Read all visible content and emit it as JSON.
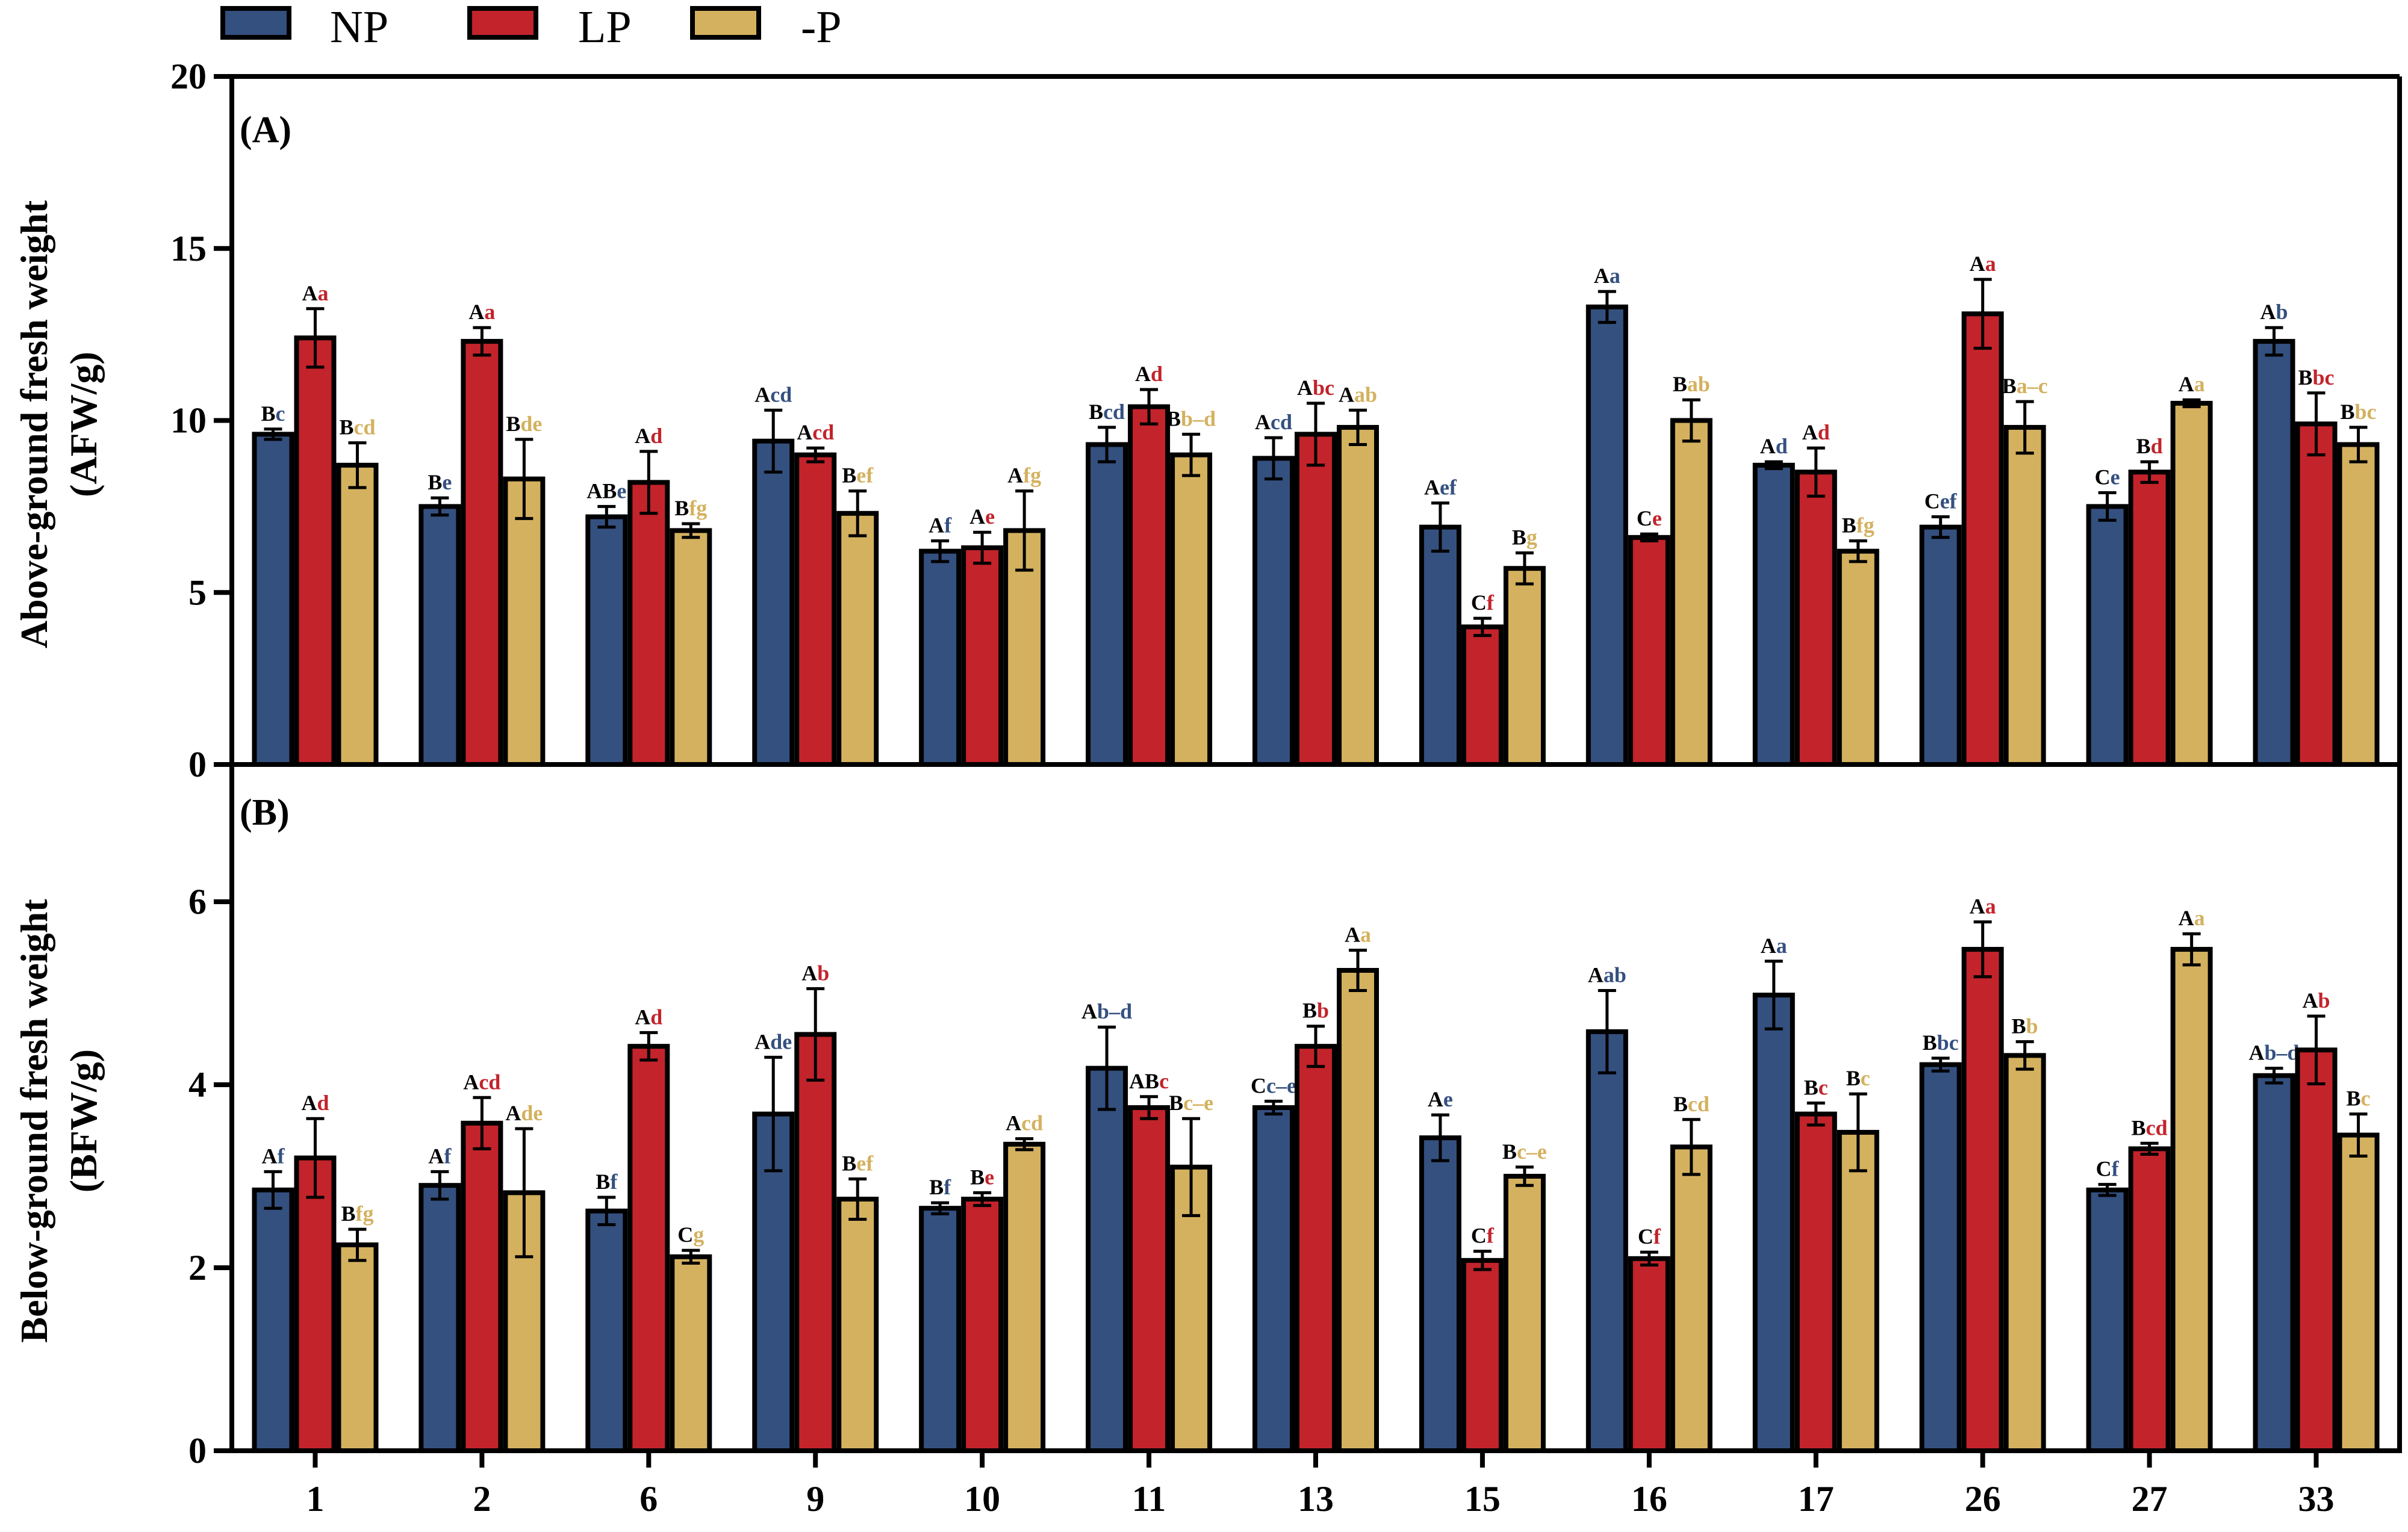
{
  "chart_data": [
    {
      "type": "bar",
      "panel_label": "(A)",
      "ylabel": [
        "Above-ground fresh weight",
        "(AFW/g)"
      ],
      "ylim": [
        0,
        20
      ],
      "yticks": [
        0,
        5,
        10,
        15,
        20
      ],
      "categories": [
        "1",
        "2",
        "6",
        "9",
        "10",
        "11",
        "13",
        "15",
        "16",
        "17",
        "26",
        "27",
        "33"
      ],
      "series": [
        {
          "name": "NP",
          "values": [
            9.6,
            7.5,
            7.2,
            9.4,
            6.2,
            9.3,
            8.9,
            6.9,
            13.3,
            8.7,
            6.9,
            7.5,
            12.3
          ],
          "errors": [
            0.15,
            0.25,
            0.3,
            0.9,
            0.3,
            0.5,
            0.6,
            0.7,
            0.45,
            0.1,
            0.3,
            0.4,
            0.4
          ],
          "cap_letters": [
            "B",
            "B",
            "AB",
            "A",
            "A",
            "B",
            "A",
            "A",
            "A",
            "A",
            "C",
            "C",
            "A"
          ],
          "low_letters": [
            "c",
            "e",
            "e",
            "cd",
            "f",
            "cd",
            "cd",
            "ef",
            "a",
            "d",
            "ef",
            "e",
            "b"
          ]
        },
        {
          "name": "LP",
          "values": [
            12.4,
            12.3,
            8.2,
            9.0,
            6.3,
            10.4,
            9.6,
            4.0,
            6.6,
            8.5,
            13.1,
            8.5,
            9.9
          ],
          "errors": [
            0.85,
            0.4,
            0.9,
            0.2,
            0.45,
            0.5,
            0.9,
            0.25,
            0.1,
            0.7,
            1.0,
            0.3,
            0.9
          ],
          "cap_letters": [
            "A",
            "A",
            "A",
            "A",
            "A",
            "A",
            "A",
            "C",
            "C",
            "A",
            "A",
            "B",
            "B"
          ],
          "low_letters": [
            "a",
            "a",
            "d",
            "cd",
            "e",
            "d",
            "bc",
            "f",
            "e",
            "d",
            "a",
            "d",
            "bc"
          ]
        },
        {
          "name": "-P",
          "values": [
            8.7,
            8.3,
            6.8,
            7.3,
            6.8,
            9.0,
            9.8,
            5.7,
            10.0,
            6.2,
            9.8,
            10.5,
            9.3
          ],
          "errors": [
            0.65,
            1.15,
            0.2,
            0.65,
            1.15,
            0.6,
            0.5,
            0.45,
            0.6,
            0.3,
            0.75,
            0.1,
            0.5
          ],
          "cap_letters": [
            "B",
            "B",
            "B",
            "B",
            "A",
            "B",
            "A",
            "B",
            "B",
            "B",
            "B",
            "A",
            "B"
          ],
          "low_letters": [
            "cd",
            "de",
            "fg",
            "ef",
            "fg",
            "b–d",
            "ab",
            "g",
            "ab",
            "fg",
            "a–c",
            "a",
            "bc"
          ]
        }
      ]
    },
    {
      "type": "bar",
      "panel_label": "(B)",
      "ylabel": [
        "Below-ground fresh weight",
        "(BFW/g)"
      ],
      "ylim": [
        0,
        7.5
      ],
      "yticks": [
        0,
        2,
        4,
        6
      ],
      "categories": [
        "1",
        "2",
        "6",
        "9",
        "10",
        "11",
        "13",
        "15",
        "16",
        "17",
        "26",
        "27",
        "33"
      ],
      "series": [
        {
          "name": "NP",
          "values": [
            2.85,
            2.9,
            2.62,
            3.68,
            2.65,
            4.18,
            3.75,
            3.42,
            4.58,
            4.98,
            4.22,
            2.85,
            4.1
          ],
          "errors": [
            0.2,
            0.15,
            0.15,
            0.62,
            0.06,
            0.45,
            0.07,
            0.25,
            0.45,
            0.37,
            0.07,
            0.06,
            0.08
          ],
          "cap_letters": [
            "A",
            "A",
            "B",
            "A",
            "B",
            "A",
            "C",
            "A",
            "A",
            "A",
            "B",
            "C",
            "A"
          ],
          "low_letters": [
            "f",
            "f",
            "f",
            "de",
            "f",
            "b–d",
            "c–e",
            "e",
            "ab",
            "a",
            "bc",
            "f",
            "b–d"
          ]
        },
        {
          "name": "LP",
          "values": [
            3.2,
            3.58,
            4.42,
            4.55,
            2.75,
            3.75,
            4.42,
            2.08,
            2.1,
            3.68,
            5.48,
            3.3,
            4.38
          ],
          "errors": [
            0.43,
            0.28,
            0.15,
            0.5,
            0.07,
            0.12,
            0.22,
            0.1,
            0.07,
            0.12,
            0.3,
            0.06,
            0.37
          ],
          "cap_letters": [
            "A",
            "A",
            "A",
            "A",
            "B",
            "AB",
            "B",
            "C",
            "C",
            "B",
            "A",
            "B",
            "A"
          ],
          "low_letters": [
            "d",
            "cd",
            "d",
            "b",
            "e",
            "c",
            "b",
            "f",
            "f",
            "c",
            "a",
            "cd",
            "b"
          ]
        },
        {
          "name": "-P",
          "values": [
            2.25,
            2.82,
            2.12,
            2.75,
            3.35,
            3.1,
            5.25,
            3.0,
            3.32,
            3.48,
            4.32,
            5.48,
            3.45
          ],
          "errors": [
            0.17,
            0.7,
            0.07,
            0.22,
            0.06,
            0.53,
            0.22,
            0.1,
            0.3,
            0.42,
            0.15,
            0.17,
            0.23
          ],
          "cap_letters": [
            "B",
            "A",
            "C",
            "B",
            "A",
            "B",
            "A",
            "B",
            "B",
            "B",
            "B",
            "A",
            "B"
          ],
          "low_letters": [
            "fg",
            "de",
            "g",
            "ef",
            "cd",
            "c–e",
            "a",
            "c–e",
            "cd",
            "c",
            "b",
            "a",
            "c"
          ]
        }
      ]
    }
  ],
  "legend": [
    {
      "name": "NP",
      "color": "#34507f"
    },
    {
      "name": "LP",
      "color": "#c3232b"
    },
    {
      "name": "-P",
      "color": "#d4b15f"
    }
  ],
  "colors": {
    "NP": "#34507f",
    "LP": "#c3232b",
    "-P": "#d4b15f",
    "axis": "#000000"
  }
}
